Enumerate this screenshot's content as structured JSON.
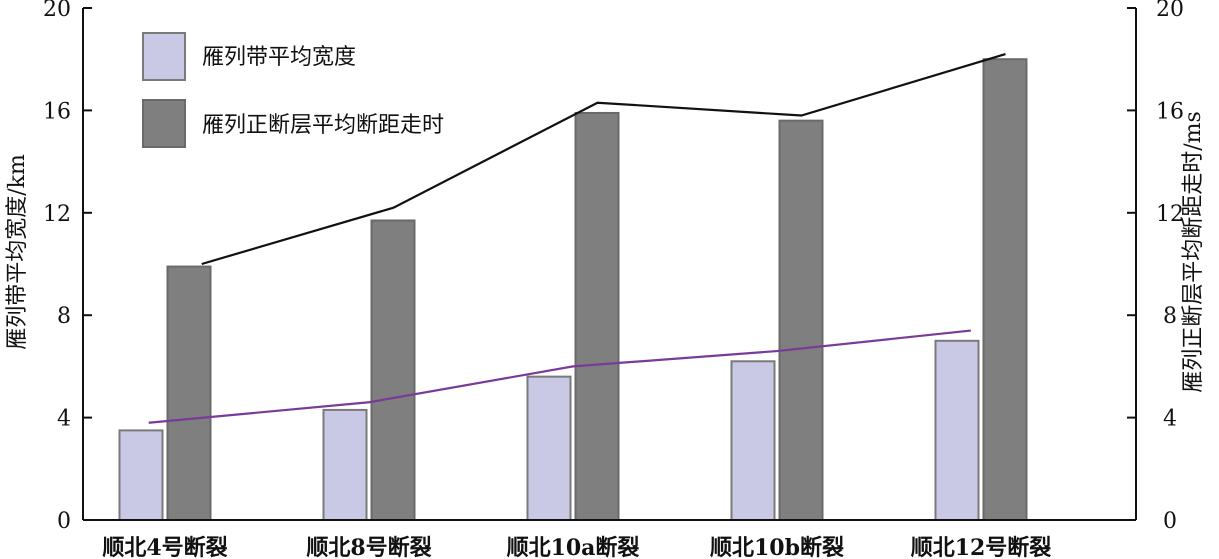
{
  "chart_data": {
    "type": "bar",
    "categories": [
      "顺北4号断裂",
      "顺北8号断裂",
      "顺北10a断裂",
      "顺北10b断裂",
      "顺北12号断裂"
    ],
    "series": [
      {
        "name": "雁列带平均宽度",
        "axis": "left",
        "values": [
          3.5,
          4.3,
          5.6,
          6.2,
          7.0
        ],
        "color": "#c9c9e6",
        "edge": "#7a7a7a"
      },
      {
        "name": "雁列正断层平均断距走时",
        "axis": "right",
        "values": [
          9.9,
          11.7,
          15.9,
          15.6,
          18.0
        ],
        "color": "#7f7f7f",
        "edge": "#6a6a6a"
      }
    ],
    "trend_lines": [
      {
        "axis": "right",
        "color": "#111111",
        "x": [
          0.18,
          1.12,
          2.12,
          3.12,
          4.12
        ],
        "values": [
          10.0,
          12.2,
          16.3,
          15.8,
          18.2
        ]
      },
      {
        "axis": "left",
        "color": "#7a3a9a",
        "x": [
          -0.08,
          1.0,
          2.0,
          3.0,
          3.95
        ],
        "values": [
          3.8,
          4.6,
          6.0,
          6.6,
          7.4
        ]
      }
    ],
    "ylabel_left": "雁列带平均宽度/km",
    "ylabel_right": "雁列正断层平均断距走时/ms",
    "ylim_left": [
      0,
      20
    ],
    "ylim_right": [
      0,
      20
    ],
    "yticks": [
      0,
      4,
      8,
      12,
      16,
      20
    ],
    "legend_position": "top-left",
    "grid": false
  }
}
